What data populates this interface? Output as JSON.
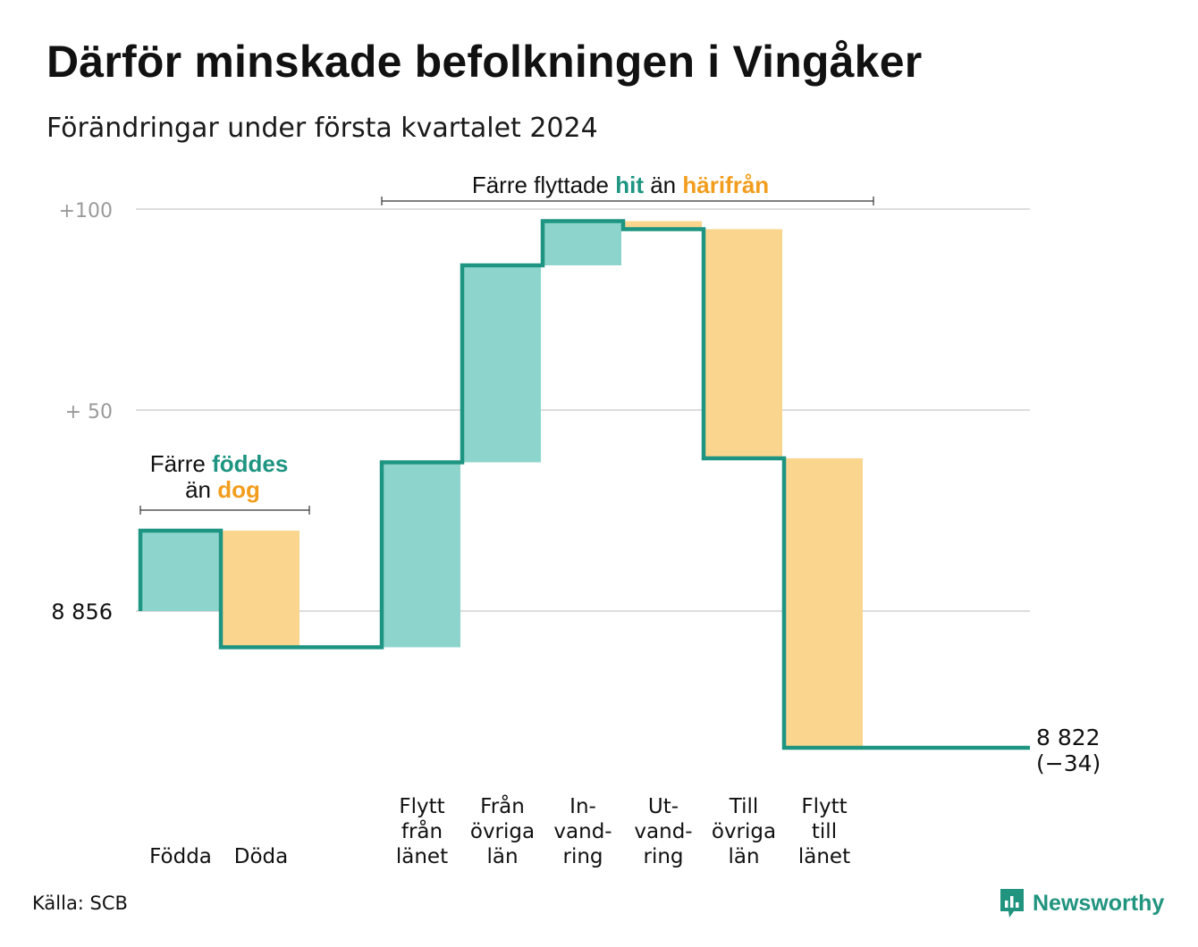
{
  "title": "Därför minskade befolkningen i Vingåker",
  "subtitle": "Förändringar under första kvartalet 2024",
  "source": "Källa: SCB",
  "brand": {
    "name": "Newsworthy",
    "icon": "chart-speech-bubble-icon",
    "color": "#21947f"
  },
  "colors": {
    "increase": "#8dd5cc",
    "decrease": "#fad58e",
    "line": "#1e9582",
    "grid": "#dddddd",
    "hit_text": "#1e9582",
    "harifran_text": "#f29d1d"
  },
  "annotations": {
    "births": {
      "prefix": "Färre",
      "highlight1": "föddes",
      "mid": "än",
      "highlight2": "dog"
    },
    "moves": {
      "prefix": "Färre flyttade",
      "highlight1": "hit",
      "mid": "än",
      "highlight2": "härifrån"
    }
  },
  "chart_data": {
    "type": "waterfall",
    "title": "Därför minskade befolkningen i Vingåker",
    "subtitle": "Förändringar under första kvartalet 2024",
    "start_value": 8856,
    "end_value": 8822,
    "end_change": -34,
    "end_label": [
      "8 822",
      "(−34)"
    ],
    "y_tick_labels": [
      "+100",
      "+  50",
      "8  856"
    ],
    "y_ticks": [
      100,
      50,
      0
    ],
    "ylim": [
      -37,
      103
    ],
    "steps": [
      {
        "label": [
          "Födda"
        ],
        "change": 20,
        "kind": "increase"
      },
      {
        "label": [
          "Döda"
        ],
        "change": -29,
        "kind": "decrease"
      },
      {
        "label": [],
        "change": 0,
        "kind": "none"
      },
      {
        "label": [
          "Flytt",
          "från",
          "länet"
        ],
        "change": 46,
        "kind": "increase"
      },
      {
        "label": [
          "Från",
          "övriga",
          "län"
        ],
        "change": 49,
        "kind": "increase"
      },
      {
        "label": [
          "In-",
          "vand-",
          "ring"
        ],
        "change": 11,
        "kind": "increase"
      },
      {
        "label": [
          "Ut-",
          "vand-",
          "ring"
        ],
        "change": -2,
        "kind": "decrease"
      },
      {
        "label": [
          "Till",
          "övriga",
          "län"
        ],
        "change": -57,
        "kind": "decrease"
      },
      {
        "label": [
          "Flytt",
          "till",
          "länet"
        ],
        "change": -72,
        "kind": "decrease"
      },
      {
        "label": [],
        "change": 0,
        "kind": "none"
      }
    ]
  }
}
